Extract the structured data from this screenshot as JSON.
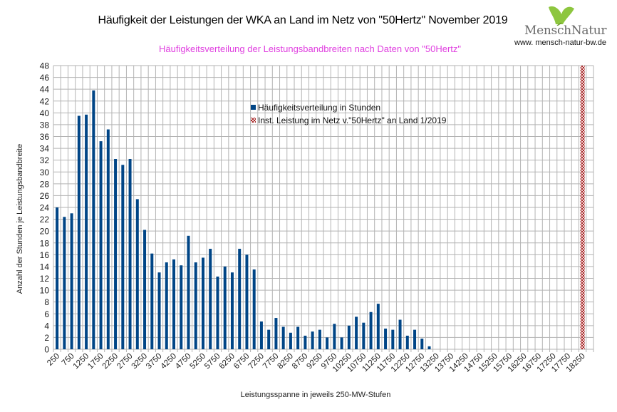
{
  "header": {
    "title": "Häufigkeit der Leistungen der WKA an Land im Netz von \"50Hertz\" November 2019",
    "subtitle": "Häufigkeitsverteilung der Leistungsbandbreiten nach Daten von \"50Hertz\""
  },
  "logo": {
    "name": "MenschNatur",
    "url": "www. mensch-natur-bw.de",
    "leaf_color": "#8dc63f"
  },
  "colors": {
    "bar": "#004586",
    "marker": "#a52a2a",
    "subtitle": "#e040e0",
    "grid": "#b3b3b3"
  },
  "chart_data": {
    "type": "bar",
    "title": "Häufigkeit der Leistungen der WKA an Land im Netz von \"50Hertz\" November 2019",
    "subtitle": "Häufigkeitsverteilung der Leistungsbandbreiten nach Daten von \"50Hertz\"",
    "xlabel": "Leistungsspanne in jeweils 250-MW-Stufen",
    "ylabel": "Anzahl der Stunden je Leistungsbandbreite",
    "ylim": [
      0,
      48
    ],
    "yticks": [
      0,
      2,
      4,
      6,
      8,
      10,
      12,
      14,
      16,
      18,
      20,
      22,
      24,
      26,
      28,
      30,
      32,
      34,
      36,
      38,
      40,
      42,
      44,
      46,
      48
    ],
    "grid": true,
    "legend_position": "top-center",
    "category_start": 250,
    "category_step": 250,
    "category_count": 74,
    "xtick_labels": [
      "250",
      "750",
      "1250",
      "1750",
      "2250",
      "2750",
      "3250",
      "3750",
      "4250",
      "4750",
      "5250",
      "5750",
      "6250",
      "6750",
      "7250",
      "7750",
      "8250",
      "8750",
      "9250",
      "9750",
      "10250",
      "10750",
      "11250",
      "11750",
      "12250",
      "12750",
      "13250",
      "13750",
      "14250",
      "14750",
      "15250",
      "15750",
      "16250",
      "16750",
      "17250",
      "17750",
      "18250"
    ],
    "series": [
      {
        "name": "Häufigkeitsverteilung in Stunden",
        "type": "bar",
        "categories": [
          250,
          500,
          750,
          1000,
          1250,
          1500,
          1750,
          2000,
          2250,
          2500,
          2750,
          3000,
          3250,
          3500,
          3750,
          4000,
          4250,
          4500,
          4750,
          5000,
          5250,
          5500,
          5750,
          6000,
          6250,
          6500,
          6750,
          7000,
          7250,
          7500,
          7750,
          8000,
          8250,
          8500,
          8750,
          9000,
          9250,
          9500,
          9750,
          10000,
          10250,
          10500,
          10750,
          11000,
          11250,
          11500,
          11750,
          12000,
          12250,
          12500,
          12750,
          13000
        ],
        "values": [
          24,
          22.4,
          23,
          39.5,
          39.7,
          43.8,
          35.2,
          37.2,
          32.2,
          31.2,
          32.2,
          25.4,
          20.2,
          16.2,
          13,
          14.7,
          15.2,
          14.2,
          19.2,
          14.7,
          15.5,
          17,
          12.3,
          14,
          13,
          17,
          16,
          13.5,
          4.7,
          3.3,
          5.3,
          3.8,
          2.8,
          3.8,
          2.3,
          3,
          3.3,
          2,
          4.3,
          2,
          4,
          5.5,
          4.5,
          6.3,
          7.7,
          3.5,
          3.3,
          5,
          2.3,
          3.3,
          1.8,
          0.5
        ]
      },
      {
        "name": "Inst. Leistung im Netz v.\"50Hertz\" an Land 1/2019",
        "type": "marker-line",
        "category": 18250,
        "value": 48
      }
    ]
  }
}
